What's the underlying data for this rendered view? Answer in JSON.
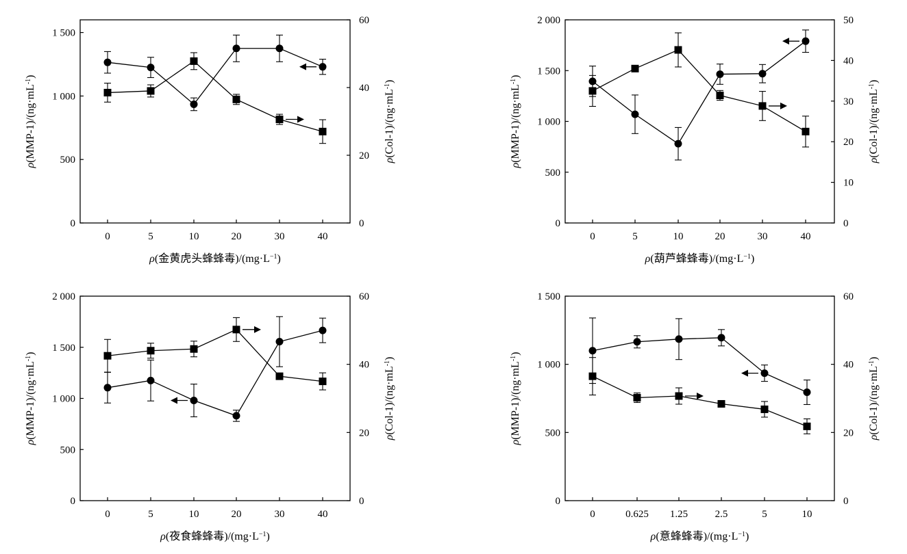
{
  "chart_data": [
    {
      "type": "line",
      "x_categories": [
        "0",
        "5",
        "10",
        "20",
        "30",
        "40"
      ],
      "xlabel": {
        "prefix": "ρ",
        "text": "(金黄虎头蜂蜂毒)/(mg·L",
        "sup": "−1",
        "suffix": ")"
      },
      "ylabel_left": {
        "prefix": "ρ",
        "text": "(MMP-1)/(ng·mL",
        "sup": "-1",
        "suffix": ")"
      },
      "ylabel_right": {
        "prefix": "ρ",
        "text": "(Col-1)/(ng·mL",
        "sup": "-1",
        "suffix": ")"
      },
      "ylim_left": [
        0,
        1600
      ],
      "yticks_left": [
        0,
        500,
        1000,
        1500
      ],
      "ytick_labels_left": [
        "0",
        "500",
        "1 000",
        "1 500"
      ],
      "ylim_right": [
        0,
        60
      ],
      "yticks_right": [
        0,
        20,
        40,
        60
      ],
      "ytick_labels_right": [
        "0",
        "20",
        "40",
        "60"
      ],
      "series": [
        {
          "marker": "circle",
          "axis": "left",
          "values": [
            1265,
            1225,
            935,
            1375,
            1375,
            1230
          ],
          "errors": [
            85,
            80,
            50,
            105,
            105,
            60
          ]
        },
        {
          "marker": "square",
          "axis": "right",
          "values": [
            38.5,
            39.0,
            47.8,
            36.5,
            30.6,
            27.0
          ],
          "errors": [
            2.8,
            1.8,
            2.5,
            1.5,
            1.5,
            3.5
          ]
        }
      ],
      "indicators": [
        {
          "series": "circle",
          "points_to": "left",
          "at_index": 5
        },
        {
          "series": "square",
          "points_to": "right",
          "at_index": 4
        }
      ]
    },
    {
      "type": "line",
      "x_categories": [
        "0",
        "5",
        "10",
        "20",
        "30",
        "40"
      ],
      "xlabel": {
        "prefix": "ρ",
        "text": "(葫芦蜂蜂毒)/(mg·L",
        "sup": "−1",
        "suffix": ")"
      },
      "ylabel_left": {
        "prefix": "ρ",
        "text": "(MMP-1)/(ng·mL",
        "sup": "-1",
        "suffix": ")"
      },
      "ylabel_right": {
        "prefix": "ρ",
        "text": "(Col-1)/(ng·mL",
        "sup": "-1",
        "suffix": ")"
      },
      "ylim_left": [
        0,
        2000
      ],
      "yticks_left": [
        0,
        500,
        1000,
        1500,
        2000
      ],
      "ytick_labels_left": [
        "0",
        "500",
        "1 000",
        "1 500",
        "2 000"
      ],
      "ylim_right": [
        0,
        50
      ],
      "yticks_right": [
        0,
        10,
        20,
        30,
        40,
        50
      ],
      "ytick_labels_right": [
        "0",
        "10",
        "20",
        "30",
        "40",
        "50"
      ],
      "series": [
        {
          "marker": "circle",
          "axis": "left",
          "values": [
            1395,
            1070,
            780,
            1465,
            1470,
            1790
          ],
          "errors": [
            150,
            190,
            160,
            100,
            90,
            110
          ]
        },
        {
          "marker": "square",
          "axis": "right",
          "values": [
            32.5,
            38.0,
            42.6,
            31.4,
            28.8,
            22.5
          ],
          "errors": [
            3.8,
            0.6,
            4.2,
            1.2,
            3.6,
            3.8
          ]
        }
      ],
      "indicators": [
        {
          "series": "circle",
          "points_to": "left",
          "at_index": 5
        },
        {
          "series": "square",
          "points_to": "right",
          "at_index": 4
        }
      ]
    },
    {
      "type": "line",
      "x_categories": [
        "0",
        "5",
        "10",
        "20",
        "30",
        "40"
      ],
      "xlabel": {
        "prefix": "ρ",
        "text": "(夜食蜂蜂毒)/(mg·L",
        "sup": "−1",
        "suffix": ")"
      },
      "ylabel_left": {
        "prefix": "ρ",
        "text": "(MMP-1)/(ng·mL",
        "sup": "-1",
        "suffix": ")"
      },
      "ylabel_right": {
        "prefix": "ρ",
        "text": "(Col-1)/(ng·mL",
        "sup": "-1",
        "suffix": ")"
      },
      "ylim_left": [
        0,
        2000
      ],
      "yticks_left": [
        0,
        500,
        1000,
        1500,
        2000
      ],
      "ytick_labels_left": [
        "0",
        "500",
        "1 000",
        "1 500",
        "2 000"
      ],
      "ylim_right": [
        0,
        60
      ],
      "yticks_right": [
        0,
        20,
        40,
        60
      ],
      "ytick_labels_right": [
        "0",
        "20",
        "40",
        "60"
      ],
      "series": [
        {
          "marker": "circle",
          "axis": "left",
          "values": [
            1105,
            1175,
            980,
            830,
            1555,
            1665
          ],
          "errors": [
            150,
            200,
            160,
            55,
            245,
            120
          ]
        },
        {
          "marker": "square",
          "axis": "right",
          "values": [
            42.5,
            44.0,
            44.5,
            50.2,
            36.5,
            35.0
          ],
          "errors": [
            4.8,
            2.2,
            2.3,
            3.5,
            0.7,
            2.5
          ]
        }
      ],
      "indicators": [
        {
          "series": "circle",
          "points_to": "left",
          "at_index": 2
        },
        {
          "series": "square",
          "points_to": "right",
          "at_index": 3
        }
      ]
    },
    {
      "type": "line",
      "x_categories": [
        "0",
        "0.625",
        "1.25",
        "2.5",
        "5",
        "10"
      ],
      "xlabel": {
        "prefix": "ρ",
        "text": "(意蜂蜂毒)/(mg·L",
        "sup": "−1",
        "suffix": ")"
      },
      "ylabel_left": {
        "prefix": "ρ",
        "text": "(MMP-1)/(ng·mL",
        "sup": "-1",
        "suffix": ")"
      },
      "ylabel_right": {
        "prefix": "ρ",
        "text": "(Col-1)/(ng·mL",
        "sup": "-1",
        "suffix": ")"
      },
      "ylim_left": [
        0,
        1500
      ],
      "yticks_left": [
        0,
        500,
        1000,
        1500
      ],
      "ytick_labels_left": [
        "0",
        "500",
        "1 000",
        "1 500"
      ],
      "ylim_right": [
        0,
        60
      ],
      "yticks_right": [
        0,
        20,
        40,
        60
      ],
      "ytick_labels_right": [
        "0",
        "20",
        "40",
        "60"
      ],
      "series": [
        {
          "marker": "circle",
          "axis": "left",
          "values": [
            1100,
            1165,
            1185,
            1195,
            935,
            795
          ],
          "errors": [
            240,
            45,
            150,
            60,
            60,
            90
          ]
        },
        {
          "marker": "square",
          "axis": "right",
          "values": [
            36.5,
            30.2,
            30.7,
            28.4,
            26.8,
            21.8
          ],
          "errors": [
            5.5,
            1.4,
            2.4,
            0.5,
            2.3,
            2.2
          ]
        }
      ],
      "indicators": [
        {
          "series": "circle",
          "points_to": "left",
          "at_index": 4
        },
        {
          "series": "square",
          "points_to": "right",
          "at_index": 2
        }
      ]
    }
  ]
}
